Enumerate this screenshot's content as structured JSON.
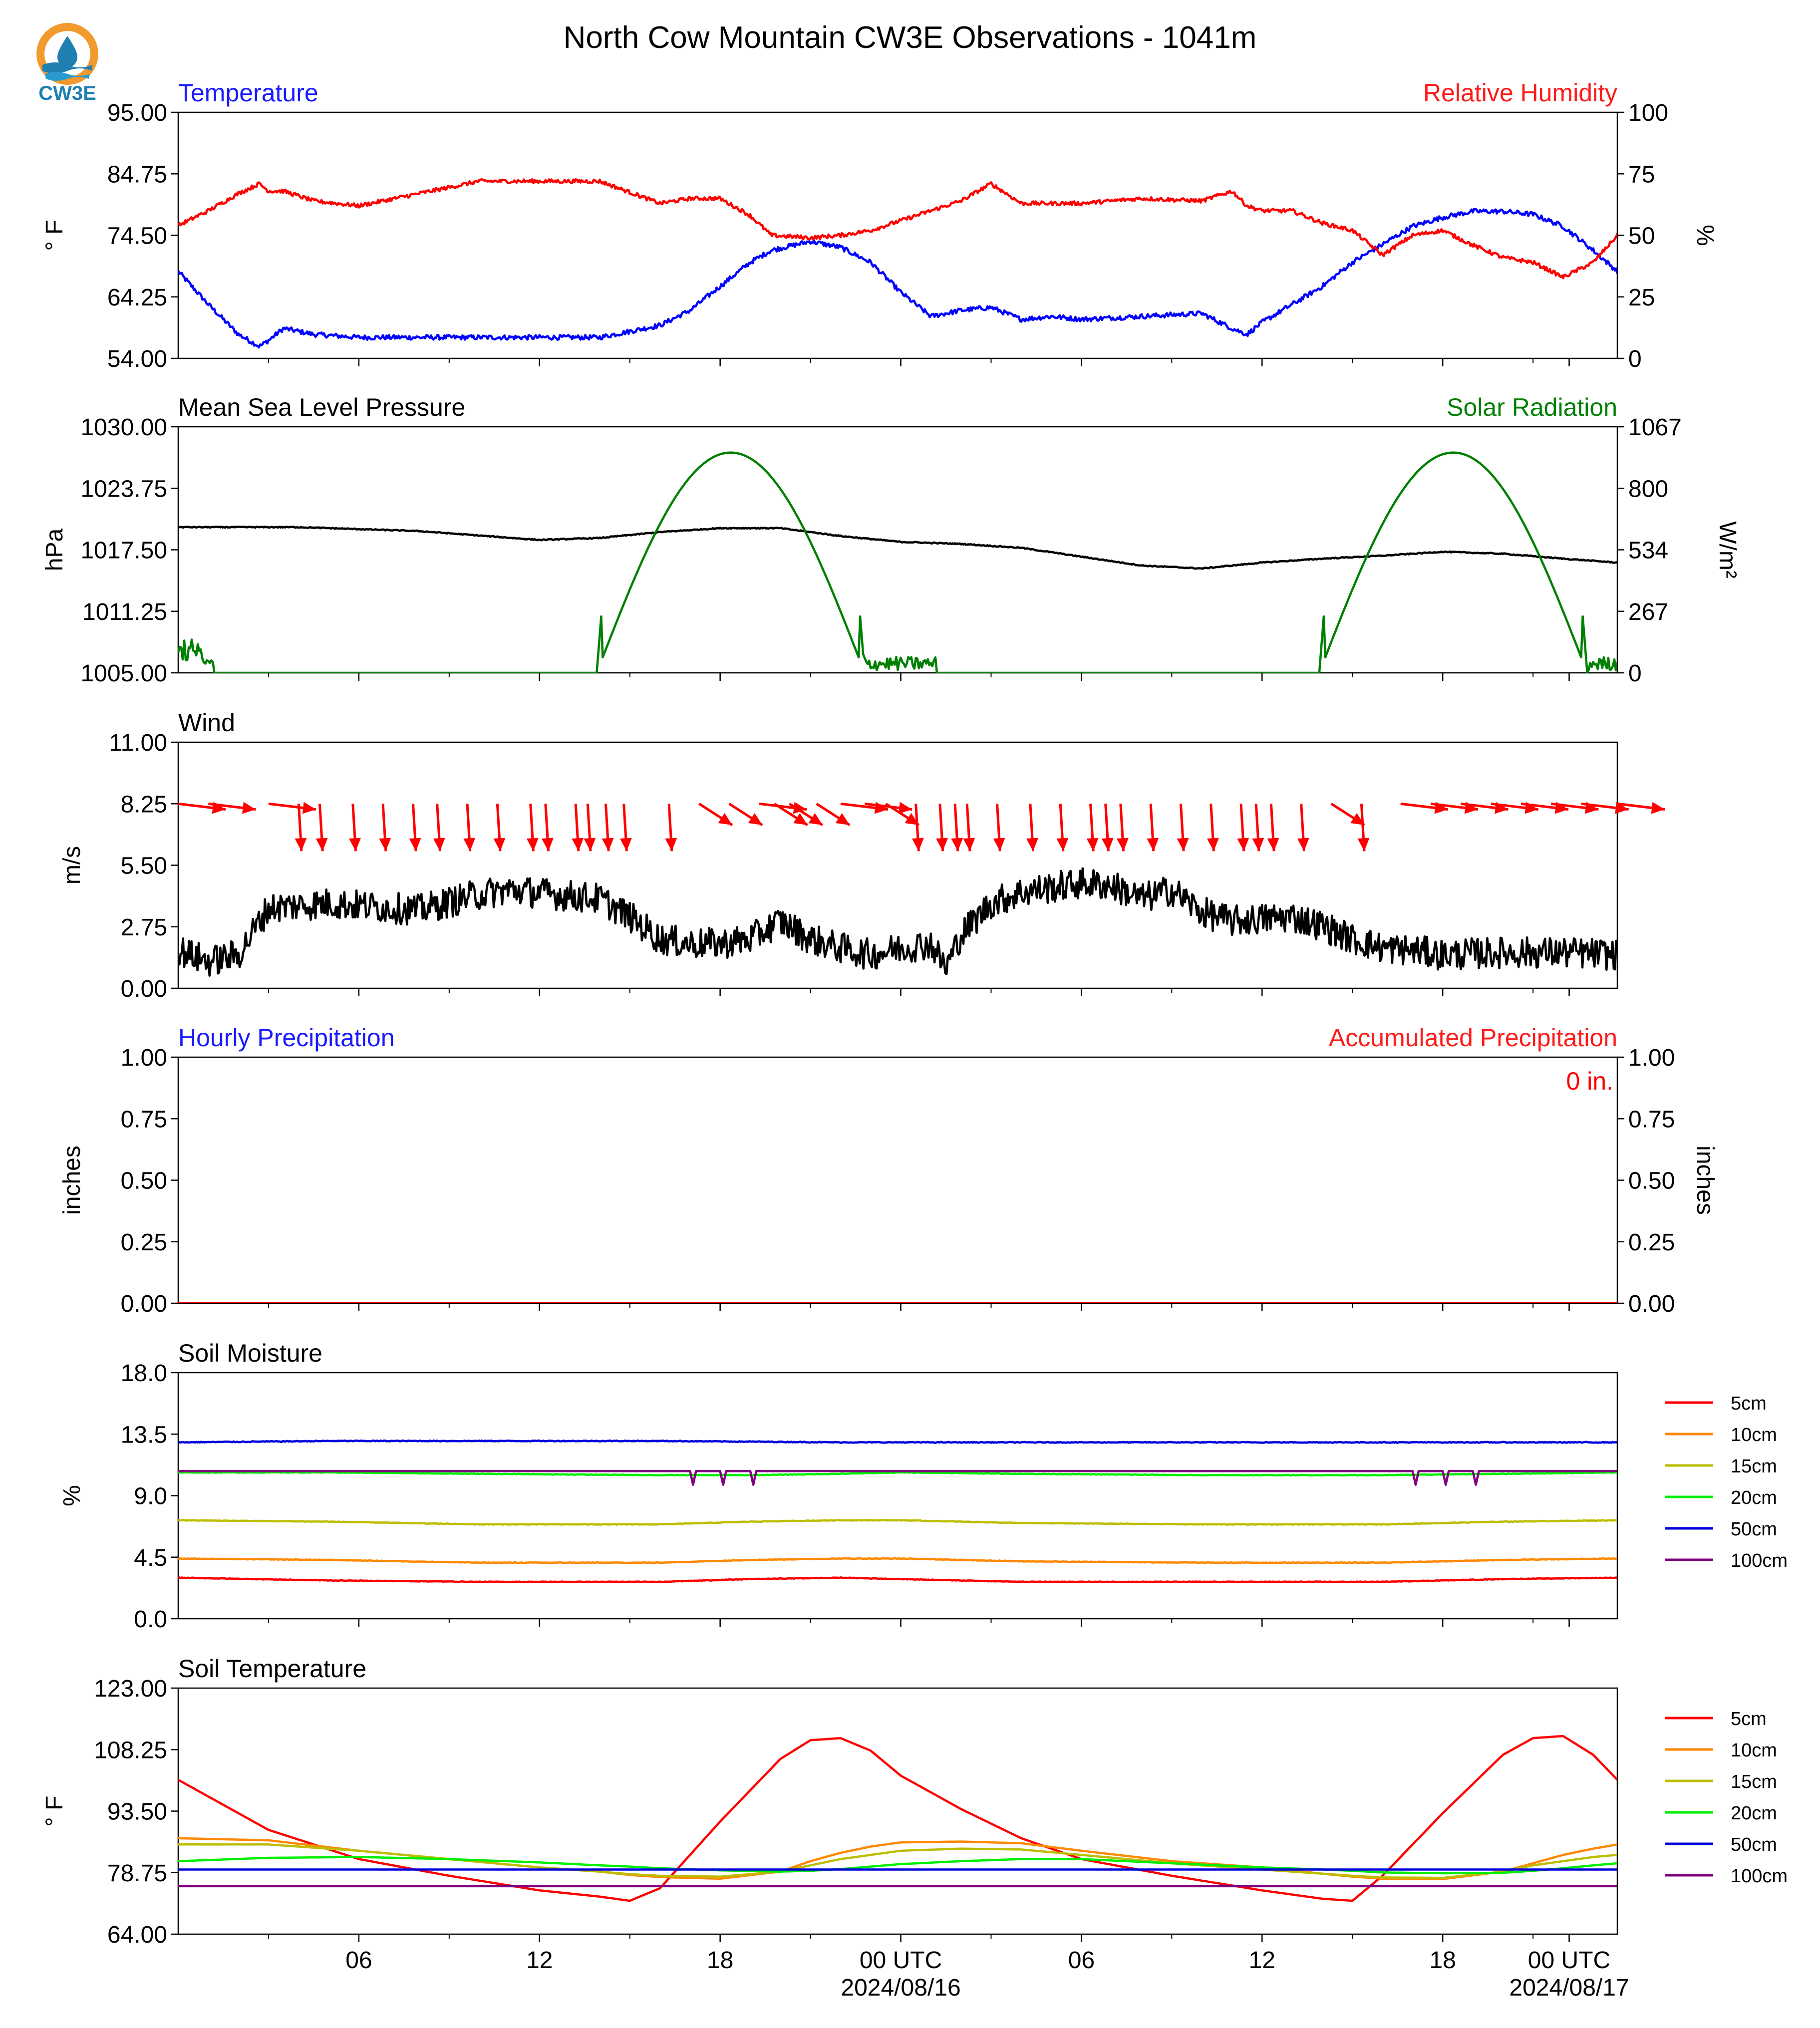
{
  "title": "North Cow Mountain CW3E Observations - 1041m",
  "logo_text": "CW3E",
  "time_axis": {
    "tick_labels": [
      "06",
      "12",
      "18",
      "00 UTC",
      "06",
      "12",
      "18",
      "00 UTC"
    ],
    "date_labels": [
      "2024/08/16",
      "2024/08/17"
    ]
  },
  "chart_data": [
    {
      "type": "line",
      "title_left": "Temperature",
      "title_right": "Relative Humidity",
      "ylabel_left": "° F",
      "ylabel_right": "%",
      "ylim_left": [
        54,
        95
      ],
      "ylim_right": [
        0,
        100
      ],
      "yticks_left": [
        "54.00",
        "64.25",
        "74.50",
        "84.75",
        "95.00"
      ],
      "yticks_right": [
        "0",
        "25",
        "50",
        "75",
        "100"
      ],
      "x_hours": [
        0,
        1,
        2,
        2.7,
        3,
        3.5,
        4.5,
        6,
        10,
        14,
        16,
        17,
        18,
        19,
        19.7,
        21,
        22,
        23,
        24,
        25,
        26,
        27,
        28,
        29,
        30,
        32,
        34,
        35,
        35.5,
        36,
        37,
        38,
        39,
        40,
        41,
        42,
        43,
        44,
        45,
        46,
        47,
        47.8
      ],
      "series": [
        {
          "name": "Temperature",
          "axis": "left",
          "color": "#0000ff",
          "noise": 0.4,
          "values": [
            68.5,
            63,
            58,
            56,
            57,
            59,
            58,
            57.5,
            57.5,
            57.5,
            59.5,
            62,
            66,
            70,
            72,
            73.5,
            72.5,
            70,
            65,
            61,
            62,
            62.5,
            60.5,
            61,
            60.5,
            61,
            61.5,
            59,
            58,
            60,
            63,
            66,
            70,
            73,
            76,
            77.5,
            78.5,
            78.5,
            78,
            76,
            72,
            68.5
          ]
        },
        {
          "name": "Relative Humidity",
          "axis": "right",
          "color": "#ff0000",
          "noise": 0.8,
          "values": [
            54,
            60,
            67,
            71,
            68,
            68,
            64,
            62,
            72,
            72,
            63,
            65,
            65,
            58,
            50,
            49,
            50,
            52,
            56,
            60,
            64,
            71,
            63,
            63,
            63,
            65,
            64,
            68,
            62,
            60,
            60,
            55,
            52,
            42,
            50,
            52,
            46,
            41,
            39,
            33,
            39,
            50
          ]
        }
      ]
    },
    {
      "type": "line",
      "title_left": "Mean Sea Level Pressure",
      "title_right": "Solar Radiation",
      "ylabel_left": "hPa",
      "ylabel_right": "W/m²",
      "ylim_left": [
        1005,
        1030
      ],
      "ylim_right": [
        0,
        1067
      ],
      "yticks_left": [
        "1005.00",
        "1011.25",
        "1017.50",
        "1023.75",
        "1030.00"
      ],
      "yticks_right": [
        "0",
        "267",
        "534",
        "800",
        "1067"
      ],
      "x_hours": [
        0,
        1,
        4,
        8,
        12,
        14,
        16,
        18,
        20,
        22,
        24,
        26,
        28,
        30,
        32,
        34,
        36,
        38,
        40,
        42,
        44,
        46,
        47.8
      ],
      "series": [
        {
          "name": "Mean Sea Level Pressure",
          "axis": "left",
          "color": "#000000",
          "noise": 0.05,
          "values": [
            1019.8,
            1019.8,
            1019.8,
            1019.4,
            1018.5,
            1018.7,
            1019.3,
            1019.7,
            1019.7,
            1018.9,
            1018.3,
            1018.1,
            1017.7,
            1016.8,
            1015.9,
            1015.6,
            1016.2,
            1016.6,
            1016.9,
            1017.3,
            1017.1,
            1016.6,
            1016.2
          ]
        },
        {
          "name": "Solar Radiation",
          "axis": "right",
          "color": "#008000",
          "diurnal": {
            "rise": 13.9,
            "set": 22.8,
            "peak": 955,
            "period": 24,
            "start": 290
          }
        }
      ]
    },
    {
      "type": "line",
      "title_left": "Wind",
      "ylabel_left": "m/s",
      "ylim_left": [
        0,
        11
      ],
      "yticks_left": [
        "0.00",
        "2.75",
        "5.50",
        "8.25",
        "11.00"
      ],
      "x_hours": [
        0,
        1,
        2,
        3,
        5,
        8,
        10,
        11,
        14,
        15,
        16,
        17,
        18,
        19,
        20,
        21,
        22,
        23,
        24,
        25,
        25.5,
        26,
        27,
        28,
        30,
        31,
        32,
        33,
        34,
        35,
        36,
        37,
        38,
        39,
        40,
        41,
        42,
        44,
        46,
        47.8
      ],
      "series": [
        {
          "name": "Wind",
          "axis": "left",
          "color": "#000000",
          "noise": 0.7,
          "values": [
            1.7,
            1.2,
            1.5,
            3.6,
            3.8,
            3.5,
            4.2,
            4.4,
            4.0,
            3.2,
            2.2,
            2.0,
            2.0,
            2.2,
            3.0,
            2.2,
            1.8,
            1.5,
            1.8,
            2.0,
            0.9,
            2.4,
            3.8,
            4.3,
            4.7,
            4.6,
            4.0,
            4.4,
            3.4,
            3.0,
            3.1,
            3.2,
            2.8,
            2.2,
            1.8,
            1.7,
            1.5,
            1.6,
            1.6,
            1.5
          ]
        }
      ],
      "barb_hours": [
        0,
        1,
        3,
        4,
        4.7,
        5.8,
        6.8,
        7.8,
        8.6,
        9.6,
        10.6,
        11.7,
        12.2,
        13.2,
        13.6,
        14.2,
        14.8,
        16.3,
        17.3,
        18.3,
        19.3,
        19.8,
        20.3,
        21.2,
        22.0,
        22.8,
        23.5,
        24.5,
        25.3,
        25.8,
        26.2,
        27.2,
        28.3,
        29.3,
        30.3,
        30.8,
        31.3,
        32.3,
        33.3,
        34.3,
        35.3,
        35.8,
        36.3,
        37.3,
        38.3,
        39.3,
        40.6,
        41.6,
        42.6,
        43.6,
        44.6,
        45.6,
        46.6,
        47.8
      ],
      "barb_direction_deg": [
        275,
        280,
        265,
        355,
        355,
        355,
        355,
        355,
        355,
        355,
        355,
        355,
        355,
        355,
        355,
        355,
        355,
        355,
        320,
        310,
        295,
        305,
        305,
        315,
        290,
        295,
        310,
        340,
        355,
        355,
        355,
        355,
        355,
        355,
        355,
        355,
        355,
        355,
        355,
        355,
        345,
        345,
        355,
        355,
        320,
        355,
        270,
        280,
        285,
        285,
        280,
        290,
        300,
        290
      ]
    },
    {
      "type": "line",
      "title_left": "Hourly Precipitation",
      "title_right": "Accumulated Precipitation",
      "annotation": "0 in.",
      "ylabel_left": "inches",
      "ylabel_right": "inches",
      "ylim_left": [
        0,
        1
      ],
      "ylim_right": [
        0,
        1
      ],
      "yticks_left": [
        "0.00",
        "0.25",
        "0.50",
        "0.75",
        "1.00"
      ],
      "yticks_right": [
        "0.00",
        "0.25",
        "0.50",
        "0.75",
        "1.00"
      ],
      "x_hours": [
        0,
        47.8
      ],
      "series": [
        {
          "name": "Hourly Precipitation",
          "axis": "left",
          "color": "#0000ff",
          "values": [
            0,
            0
          ]
        },
        {
          "name": "Accumulated Precipitation",
          "axis": "right",
          "color": "#ff0000",
          "values": [
            0,
            0
          ]
        }
      ]
    },
    {
      "type": "line",
      "title_left": "Soil Moisture",
      "ylabel_left": "%",
      "ylim_left": [
        0,
        18
      ],
      "yticks_left": [
        "0.0",
        "4.5",
        "9.0",
        "13.5",
        "18.0"
      ],
      "x_hours": [
        0,
        5,
        10,
        16,
        19,
        22,
        24,
        28,
        34,
        40,
        44,
        47.8
      ],
      "legend": [
        "5cm",
        "10cm",
        "15cm",
        "20cm",
        "50cm",
        "100cm"
      ],
      "series": [
        {
          "name": "5cm",
          "axis": "left",
          "color": "#ff0000",
          "noise": 0.02,
          "values": [
            3.0,
            2.8,
            2.7,
            2.7,
            2.9,
            3.0,
            2.9,
            2.7,
            2.7,
            2.7,
            2.9,
            3.0
          ]
        },
        {
          "name": "10cm",
          "axis": "left",
          "color": "#ff8800",
          "noise": 0.02,
          "values": [
            4.4,
            4.3,
            4.1,
            4.1,
            4.3,
            4.4,
            4.4,
            4.2,
            4.1,
            4.1,
            4.3,
            4.4
          ]
        },
        {
          "name": "15cm",
          "axis": "left",
          "color": "#bdbd00",
          "noise": 0.02,
          "values": [
            7.2,
            7.1,
            6.9,
            6.9,
            7.1,
            7.2,
            7.2,
            7.0,
            6.9,
            6.9,
            7.1,
            7.2
          ]
        },
        {
          "name": "20cm",
          "axis": "left",
          "color": "#00ee00",
          "noise": 0.02,
          "values": [
            10.7,
            10.7,
            10.6,
            10.5,
            10.5,
            10.6,
            10.7,
            10.6,
            10.5,
            10.5,
            10.6,
            10.7
          ]
        },
        {
          "name": "50cm",
          "axis": "left",
          "color": "#0000dd",
          "noise": 0.03,
          "values": [
            12.9,
            13.0,
            13.0,
            13.0,
            12.95,
            12.9,
            12.9,
            12.9,
            12.9,
            12.9,
            12.9,
            12.9
          ]
        },
        {
          "name": "100cm",
          "axis": "left",
          "color": "#800080",
          "noise": 0.0,
          "values": [
            10.8,
            10.8,
            10.8,
            10.8,
            10.8,
            10.8,
            10.8,
            10.8,
            10.8,
            10.8,
            10.8,
            10.8
          ]
        }
      ],
      "dips_100cm_hours": [
        17.1,
        18.1,
        19.1,
        41.1,
        42.1,
        43.1
      ]
    },
    {
      "type": "line",
      "title_left": "Soil Temperature",
      "ylabel_left": "° F",
      "ylim_left": [
        64,
        123
      ],
      "yticks_left": [
        "64.00",
        "78.75",
        "93.50",
        "108.25",
        "123.00"
      ],
      "x_hours": [
        0,
        3,
        6,
        9,
        12,
        14,
        15,
        16,
        18,
        20,
        21,
        22,
        23,
        24,
        26,
        28,
        30,
        33,
        36,
        38,
        39,
        40,
        42,
        44,
        45,
        46,
        47,
        47.8
      ],
      "legend": [
        "5cm",
        "10cm",
        "15cm",
        "20cm",
        "50cm",
        "100cm"
      ],
      "series": [
        {
          "name": "5cm",
          "axis": "left",
          "color": "#ff0000",
          "values": [
            101,
            89,
            82,
            78,
            74.5,
            73,
            72,
            75,
            91,
            106,
            110.5,
            111,
            108,
            102,
            94,
            87,
            82,
            78,
            74.5,
            72.5,
            72,
            78,
            93,
            107,
            111,
            111.5,
            107,
            101
          ]
        },
        {
          "name": "10cm",
          "axis": "left",
          "color": "#ff8800",
          "values": [
            87,
            86.5,
            84,
            82,
            80,
            79,
            78.2,
            77.7,
            77.3,
            79,
            81.5,
            83.5,
            85,
            86,
            86.2,
            85.8,
            84,
            81.5,
            80,
            78.5,
            77.8,
            77.3,
            77.2,
            79,
            81,
            83,
            84.5,
            85.5
          ]
        },
        {
          "name": "15cm",
          "axis": "left",
          "color": "#bdbd00",
          "values": [
            85.5,
            85.5,
            84,
            82,
            80,
            79,
            78.4,
            78,
            77.8,
            79,
            80.5,
            82,
            83,
            84,
            84.5,
            84.3,
            83,
            81,
            79.5,
            78.5,
            78,
            77.6,
            77.5,
            79,
            80.5,
            81.5,
            82.5,
            83
          ]
        },
        {
          "name": "20cm",
          "axis": "left",
          "color": "#00ee00",
          "values": [
            81.5,
            82.3,
            82.5,
            82,
            81.2,
            80.5,
            80.2,
            79.8,
            79.3,
            79,
            79.2,
            79.6,
            80.2,
            80.8,
            81.5,
            82,
            82,
            81,
            80,
            79.5,
            79.2,
            78.8,
            78.6,
            78.7,
            79.2,
            79.8,
            80.5,
            81
          ]
        },
        {
          "name": "50cm",
          "axis": "left",
          "color": "#0000dd",
          "values": [
            79.5,
            79.5,
            79.5,
            79.5,
            79.5,
            79.5,
            79.5,
            79.5,
            79.5,
            79.5,
            79.5,
            79.5,
            79.5,
            79.5,
            79.5,
            79.5,
            79.5,
            79.5,
            79.5,
            79.5,
            79.5,
            79.5,
            79.5,
            79.5,
            79.5,
            79.5,
            79.5,
            79.5
          ]
        },
        {
          "name": "100cm",
          "axis": "left",
          "color": "#800080",
          "values": [
            75.5,
            75.5,
            75.5,
            75.5,
            75.5,
            75.5,
            75.5,
            75.5,
            75.5,
            75.5,
            75.5,
            75.5,
            75.5,
            75.5,
            75.5,
            75.5,
            75.5,
            75.5,
            75.5,
            75.5,
            75.5,
            75.5,
            75.5,
            75.5,
            75.5,
            75.5,
            75.5,
            75.5
          ]
        }
      ]
    }
  ]
}
